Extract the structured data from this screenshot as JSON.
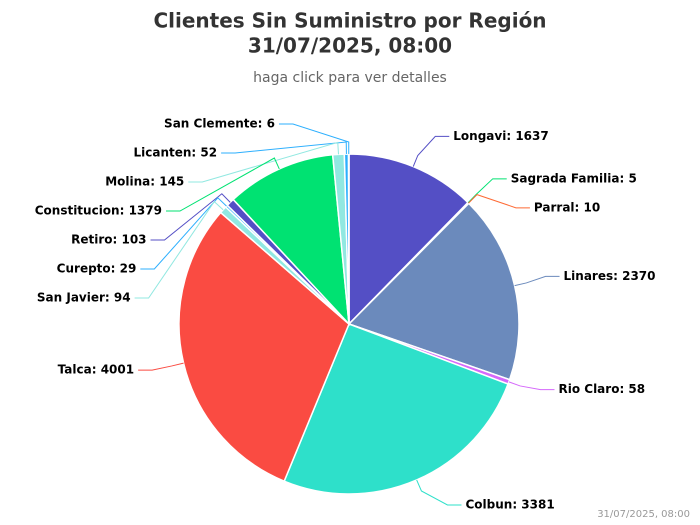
{
  "chart_data": {
    "type": "pie",
    "title_lines": [
      "Clientes Sin Suministro por Región",
      "31/07/2025, 08:00"
    ],
    "subtitle": "haga click para ver detalles",
    "credits": "31/07/2025, 08:00",
    "values": [
      1637,
      5,
      10,
      2370,
      58,
      3381,
      4001,
      94,
      29,
      103,
      1379,
      145,
      52,
      6
    ],
    "value_labels": [
      "Longavi: 1637",
      "Sagrada Familia: 5",
      "Parral: 10",
      "Linares: 2370",
      "Rio Claro: 58",
      "Colbun: 3381",
      "Talca: 4001",
      "San Javier: 94",
      "Curepto: 29",
      "Retiro: 103",
      "Constitucion: 1379",
      "Molina: 145",
      "Licanten: 52",
      "San Clemente: 6"
    ],
    "colors": [
      "#544fc5",
      "#00e272",
      "#fe6a35",
      "#6b8abc",
      "#d568fb",
      "#2ee0ca",
      "#fa4b42",
      "#91e8e1",
      "#2caffe",
      "#544fc5",
      "#00e272",
      "#91e8e1",
      "#2caffe",
      "#2caffe"
    ]
  }
}
